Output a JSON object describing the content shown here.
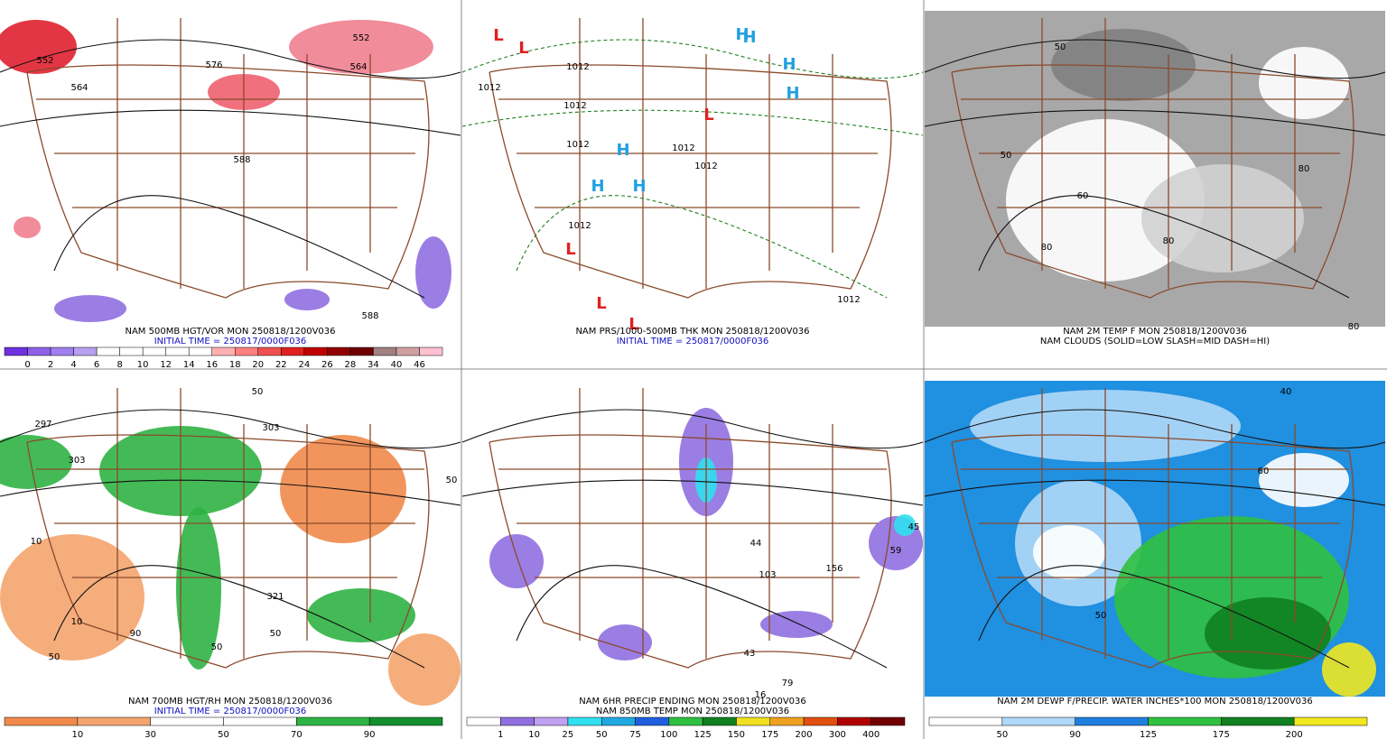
{
  "panels": [
    {
      "captions": [
        {
          "text": "NAM 500MB HGT/VOR MON 250818/1200V036",
          "color": "#000000"
        },
        {
          "text": "INITIAL TIME = 250817/0000F036",
          "color": "#1010c0"
        }
      ],
      "map_labels": [
        "552",
        "564",
        "576",
        "552",
        "564",
        "588",
        "588"
      ],
      "colorbar": {
        "colors": [
          "#7030e0",
          "#9060e8",
          "#a080f0",
          "#b8a0f0",
          "#ffffff",
          "#ffffff",
          "#ffffff",
          "#ffffff",
          "#ffffff",
          "#ffb0b0",
          "#ff8080",
          "#f05050",
          "#e02020",
          "#c00000",
          "#900000",
          "#700000",
          "#a08080",
          "#d0a0a0",
          "#ffc0d0"
        ],
        "labels": [
          "0",
          "2",
          "4",
          "6",
          "8",
          "10",
          "12",
          "14",
          "16",
          "18",
          "20",
          "22",
          "24",
          "26",
          "28",
          "34",
          "40",
          "46"
        ]
      }
    },
    {
      "captions": [
        {
          "text": "NAM PRS/1000-500MB THK MON 250818/1200V036",
          "color": "#000000"
        },
        {
          "text": "INITIAL TIME = 250817/0000F036",
          "color": "#1010c0"
        }
      ],
      "map_labels": [
        "L",
        "L",
        "H",
        "H",
        "H",
        "L",
        "H",
        "H",
        "H",
        "L",
        "L",
        "L",
        "H",
        "1012",
        "1012",
        "1012",
        "1012",
        "1012",
        "1012",
        "1012",
        "1012"
      ]
    },
    {
      "captions": [
        {
          "text": "NAM 2M TEMP F MON 250818/1200V036",
          "color": "#000000"
        },
        {
          "text": "NAM CLOUDS (SOLID=LOW SLASH=MID DASH=HI)",
          "color": "#000000"
        }
      ],
      "map_labels": [
        "50",
        "50",
        "60",
        "80",
        "80",
        "80",
        "80"
      ]
    },
    {
      "captions": [
        {
          "text": "NAM 700MB HGT/RH MON 250818/1200V036",
          "color": "#000000"
        },
        {
          "text": "INITIAL TIME = 250817/0000F036",
          "color": "#1010c0"
        }
      ],
      "map_labels": [
        "297",
        "303",
        "303",
        "50",
        "50",
        "10",
        "10",
        "90",
        "50",
        "321",
        "50",
        "50"
      ],
      "colorbar": {
        "colors": [
          "#f08a4b",
          "#f4a46e",
          "#ffffff",
          "#ffffff",
          "#2fb344",
          "#148f2e"
        ],
        "labels": [
          "10",
          "30",
          "50",
          "70",
          "90"
        ]
      }
    },
    {
      "captions": [
        {
          "text": "NAM 6HR PRECIP ENDING MON 250818/1200V036",
          "color": "#000000"
        },
        {
          "text": "NAM 850MB TEMP MON 250818/1200V036",
          "color": "#000000"
        }
      ],
      "map_labels": [
        "44",
        "103",
        "156",
        "45",
        "59",
        "43",
        "79",
        "16"
      ],
      "colorbar": {
        "colors": [
          "#ffffff",
          "#9070e0",
          "#c0a0f0",
          "#30e0f0",
          "#20a8e0",
          "#2060e0",
          "#30c040",
          "#108020",
          "#f0e020",
          "#f0a020",
          "#e05010",
          "#b00000",
          "#700000"
        ],
        "labels": [
          "1",
          "10",
          "25",
          "50",
          "75",
          "100",
          "125",
          "150",
          "175",
          "200",
          "300",
          "400"
        ]
      }
    },
    {
      "captions": [
        {
          "text": "NAM 2M DEWP F/PRECIP. WATER INCHES*100 MON 250818/1200V036",
          "color": "#000000"
        }
      ],
      "map_labels": [
        "40",
        "60",
        "50"
      ],
      "colorbar": {
        "colors": [
          "#ffffff",
          "#b0d8f8",
          "#2080e0",
          "#30c040",
          "#108020",
          "#f0e820"
        ],
        "labels": [
          "50",
          "90",
          "125",
          "175",
          "200"
        ]
      }
    }
  ]
}
